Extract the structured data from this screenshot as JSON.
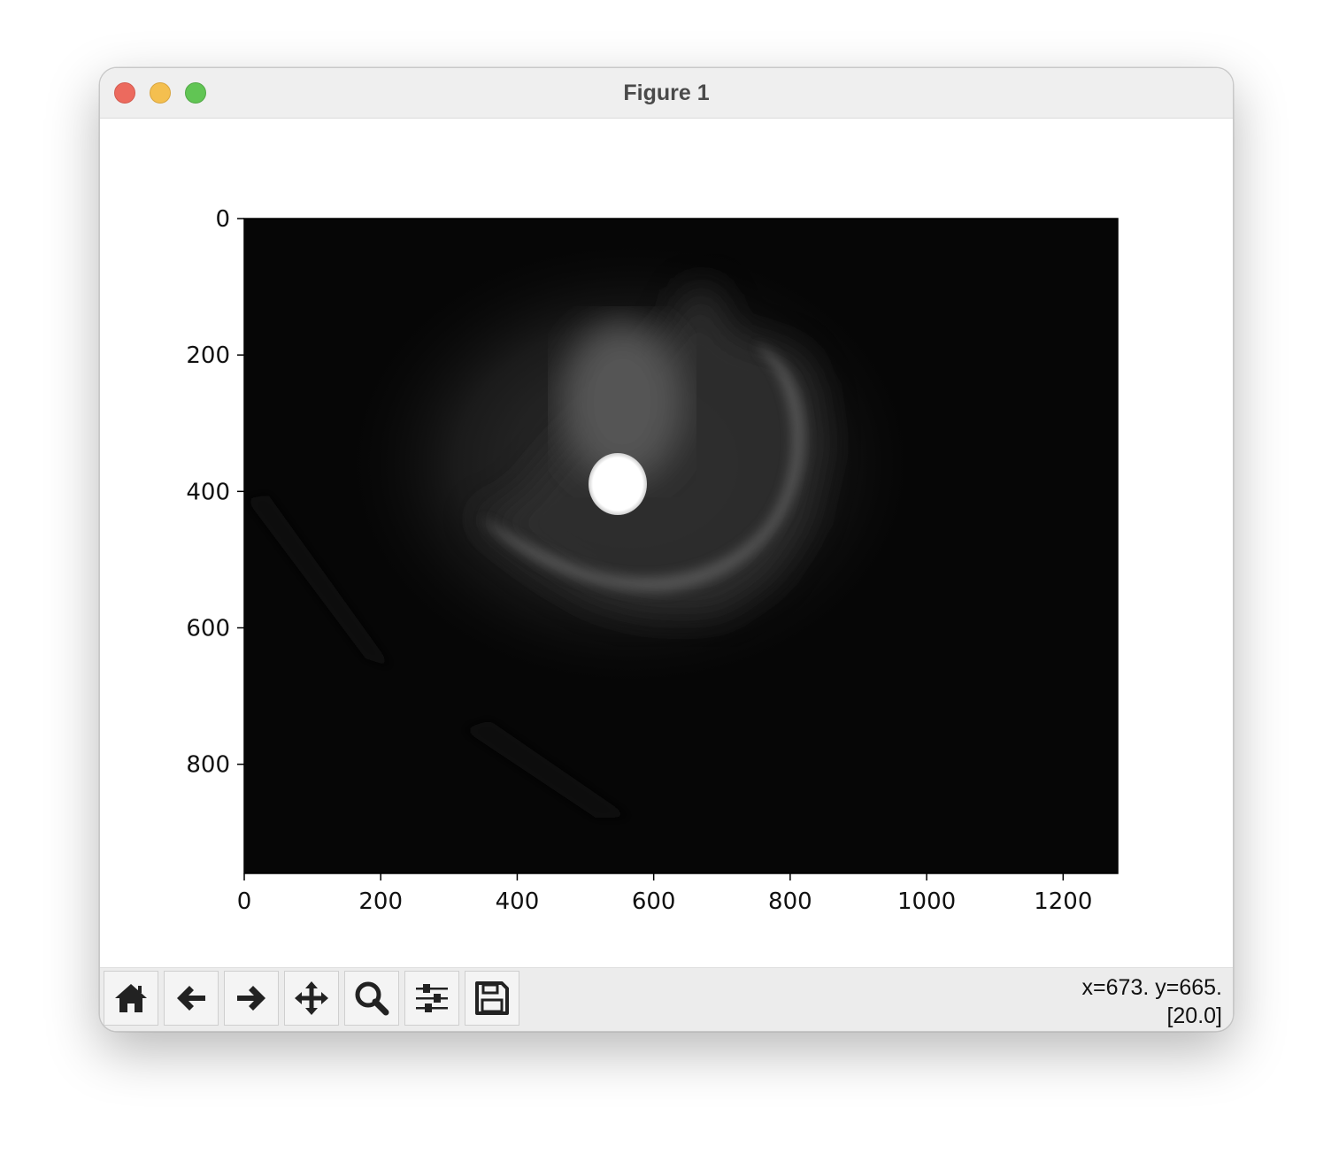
{
  "window": {
    "title": "Figure 1"
  },
  "toolbar": {
    "buttons": [
      {
        "name": "home",
        "icon": "home-icon"
      },
      {
        "name": "back",
        "icon": "arrow-left-icon"
      },
      {
        "name": "forward",
        "icon": "arrow-right-icon"
      },
      {
        "name": "pan",
        "icon": "move-icon"
      },
      {
        "name": "zoom",
        "icon": "magnifier-icon"
      },
      {
        "name": "configure-subplots",
        "icon": "sliders-icon"
      },
      {
        "name": "save",
        "icon": "floppy-disk-icon"
      }
    ],
    "status_line1": "x=673. y=665.",
    "status_line2": "[20.0]"
  },
  "chart_data": {
    "type": "image",
    "colormap": "gray",
    "xlim": [
      0,
      1280
    ],
    "ylim": [
      960,
      0
    ],
    "xticks": [
      0,
      200,
      400,
      600,
      800,
      1000,
      1200
    ],
    "yticks": [
      0,
      200,
      400,
      600,
      800
    ],
    "xtick_labels": [
      "0",
      "200",
      "400",
      "600",
      "800",
      "1000",
      "1200"
    ],
    "ytick_labels": [
      "0",
      "200",
      "400",
      "600",
      "800"
    ],
    "title": "",
    "xlabel": "",
    "ylabel": "",
    "background_color": "#060606"
  }
}
